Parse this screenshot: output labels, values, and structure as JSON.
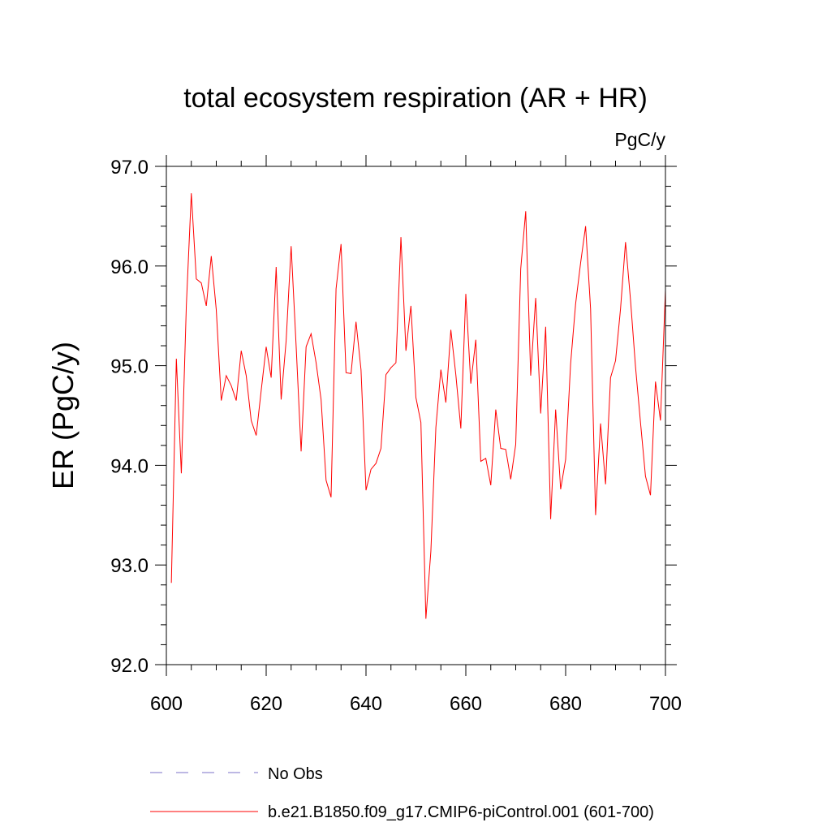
{
  "chart_data": {
    "type": "line",
    "title": "total ecosystem respiration (AR + HR)",
    "units": "PgC/y",
    "ylabel": "ER  (PgC/y)",
    "xlabel": "",
    "xlim": [
      600,
      700
    ],
    "ylim": [
      92.0,
      97.0
    ],
    "x_ticks": [
      600,
      620,
      640,
      660,
      680,
      700
    ],
    "x_tick_labels": [
      "600",
      "620",
      "640",
      "660",
      "680",
      "700"
    ],
    "y_ticks": [
      92.0,
      93.0,
      94.0,
      95.0,
      96.0,
      97.0
    ],
    "y_tick_labels": [
      "92.0",
      "93.0",
      "94.0",
      "95.0",
      "96.0",
      "97.0"
    ],
    "series": [
      {
        "name": "b.e21.B1850.f09_g17.CMIP6-piControl.001 (601-700)",
        "color": "#ff0000",
        "style": "solid",
        "x": [
          601,
          602,
          603,
          604,
          605,
          606,
          607,
          608,
          609,
          610,
          611,
          612,
          613,
          614,
          615,
          616,
          617,
          618,
          619,
          620,
          621,
          622,
          623,
          624,
          625,
          626,
          627,
          628,
          629,
          630,
          631,
          632,
          633,
          634,
          635,
          636,
          637,
          638,
          639,
          640,
          641,
          642,
          643,
          644,
          645,
          646,
          647,
          648,
          649,
          650,
          651,
          652,
          653,
          654,
          655,
          656,
          657,
          658,
          659,
          660,
          661,
          662,
          663,
          664,
          665,
          666,
          667,
          668,
          669,
          670,
          671,
          672,
          673,
          674,
          675,
          676,
          677,
          678,
          679,
          680,
          681,
          682,
          683,
          684,
          685,
          686,
          687,
          688,
          689,
          690,
          691,
          692,
          693,
          694,
          695,
          696,
          697,
          698,
          699,
          700
        ],
        "values": [
          92.82,
          95.07,
          93.92,
          95.6,
          96.73,
          95.87,
          95.83,
          95.6,
          96.1,
          95.56,
          94.65,
          94.9,
          94.8,
          94.65,
          95.15,
          94.9,
          94.45,
          94.3,
          94.75,
          95.19,
          94.88,
          95.99,
          94.66,
          95.25,
          96.2,
          95.2,
          94.14,
          95.19,
          95.32,
          95.03,
          94.66,
          93.85,
          93.68,
          95.77,
          96.22,
          94.93,
          94.92,
          95.44,
          94.96,
          93.75,
          93.96,
          94.02,
          94.17,
          94.91,
          94.98,
          95.03,
          96.29,
          95.15,
          95.6,
          94.68,
          94.43,
          92.46,
          93.14,
          94.38,
          94.96,
          94.63,
          95.36,
          94.91,
          94.37,
          95.72,
          94.82,
          95.26,
          94.04,
          94.07,
          93.8,
          94.56,
          94.17,
          94.16,
          93.86,
          94.21,
          95.97,
          96.55,
          94.9,
          95.68,
          94.52,
          95.39,
          93.46,
          94.56,
          93.76,
          94.06,
          95.02,
          95.62,
          96.03,
          96.4,
          95.57,
          93.5,
          94.42,
          93.81,
          94.88,
          95.05,
          95.57,
          96.24,
          95.66,
          94.99,
          94.43,
          93.89,
          93.7,
          94.84,
          94.45,
          95.76
        ]
      },
      {
        "name": "No Obs",
        "color": "#7b72c8",
        "style": "dashed",
        "x": [],
        "values": []
      }
    ],
    "legend_position": "bottom-left"
  }
}
